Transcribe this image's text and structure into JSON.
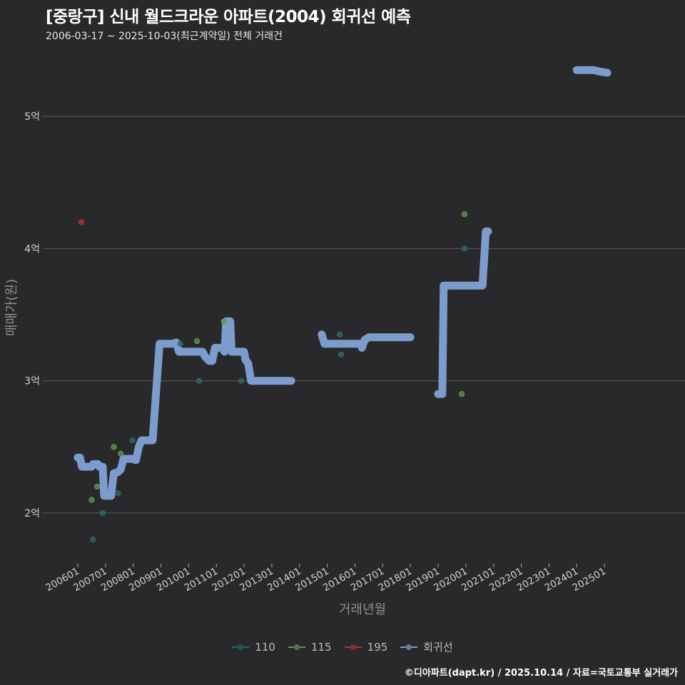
{
  "header": {
    "title": "[중랑구] 신내 월드크라운 아파트(2004) 회귀선 예측",
    "subtitle": "2006-03-17 ~ 2025-10-03(최근계약일) 전체 거래건"
  },
  "footer": {
    "credit": "©디아파트(dapt.kr) / 2025.10.14 / 자료=국토교통부 실거래가"
  },
  "colors": {
    "background": "#29292b",
    "grid": "#5a5a5c",
    "series_110": "#2e6b66",
    "series_115": "#5e9a4e",
    "series_195": "#a8373c",
    "regression": "#7b9ccc"
  },
  "chart_data": {
    "type": "scatter",
    "title": "[중랑구] 신내 월드크라운 아파트(2004) 회귀선 예측",
    "subtitle": "2006-03-17 ~ 2025-10-03(최근계약일) 전체 거래건",
    "xlabel": "거래년월",
    "ylabel": "매매가(원)",
    "x_ticks": [
      "200601",
      "200701",
      "200801",
      "200901",
      "201001",
      "201101",
      "201201",
      "201301",
      "201401",
      "201501",
      "201601",
      "201701",
      "201801",
      "201901",
      "202001",
      "202101",
      "202201",
      "202301",
      "202401",
      "202501"
    ],
    "y_ticks": [
      {
        "value": 2,
        "label": "2억"
      },
      {
        "value": 3,
        "label": "3억"
      },
      {
        "value": 4,
        "label": "4억"
      },
      {
        "value": 5,
        "label": "5억"
      }
    ],
    "ylim": [
      1.7,
      5.8
    ],
    "xlim": [
      2005.5,
      2026.3
    ],
    "grid": true,
    "legend_position": "bottom",
    "legend": [
      {
        "label": "110",
        "key": "series_110"
      },
      {
        "label": "115",
        "key": "series_115"
      },
      {
        "label": "195",
        "key": "series_195"
      },
      {
        "label": "회귀선",
        "key": "regression"
      }
    ],
    "series": [
      {
        "name": "110",
        "type": "scatter",
        "points": [
          [
            2006.55,
            1.8
          ],
          [
            2006.9,
            2.0
          ],
          [
            2007.45,
            2.15
          ],
          [
            2007.97,
            2.55
          ],
          [
            2009.7,
            3.28
          ],
          [
            2010.38,
            3.0
          ],
          [
            2011.9,
            3.0
          ],
          [
            2015.45,
            3.35
          ],
          [
            2015.5,
            3.2
          ],
          [
            2019.95,
            4.0
          ]
        ]
      },
      {
        "name": "115",
        "type": "scatter",
        "points": [
          [
            2006.5,
            2.1
          ],
          [
            2006.7,
            2.2
          ],
          [
            2007.3,
            2.5
          ],
          [
            2007.55,
            2.45
          ],
          [
            2010.3,
            3.3
          ],
          [
            2011.27,
            3.45
          ],
          [
            2019.85,
            2.9
          ],
          [
            2019.95,
            4.26
          ]
        ]
      },
      {
        "name": "195",
        "type": "scatter",
        "points": [
          [
            2006.13,
            4.2
          ]
        ]
      },
      {
        "name": "회귀선",
        "type": "line",
        "segments": [
          [
            [
              2006.0,
              2.42
            ],
            [
              2006.08,
              2.42
            ],
            [
              2006.15,
              2.35
            ],
            [
              2006.5,
              2.35
            ],
            [
              2006.55,
              2.37
            ],
            [
              2006.72,
              2.37
            ],
            [
              2006.78,
              2.35
            ],
            [
              2006.9,
              2.35
            ],
            [
              2006.95,
              2.13
            ],
            [
              2007.2,
              2.13
            ],
            [
              2007.3,
              2.3
            ],
            [
              2007.45,
              2.31
            ],
            [
              2007.55,
              2.33
            ],
            [
              2007.65,
              2.41
            ],
            [
              2007.95,
              2.41
            ],
            [
              2008.1,
              2.4
            ],
            [
              2008.2,
              2.5
            ],
            [
              2008.3,
              2.55
            ],
            [
              2008.7,
              2.55
            ],
            [
              2008.95,
              3.28
            ],
            [
              2009.4,
              3.28
            ],
            [
              2009.55,
              3.29
            ],
            [
              2009.65,
              3.22
            ],
            [
              2010.5,
              3.22
            ],
            [
              2010.6,
              3.18
            ],
            [
              2010.75,
              3.15
            ],
            [
              2010.85,
              3.15
            ],
            [
              2010.95,
              3.25
            ],
            [
              2011.2,
              3.25
            ],
            [
              2011.3,
              3.22
            ],
            [
              2011.35,
              3.45
            ],
            [
              2011.5,
              3.45
            ],
            [
              2011.55,
              3.22
            ],
            [
              2011.7,
              3.22
            ],
            [
              2012.0,
              3.22
            ],
            [
              2012.05,
              3.16
            ],
            [
              2012.15,
              3.13
            ],
            [
              2012.25,
              3.0
            ],
            [
              2013.7,
              3.0
            ]
          ],
          [
            [
              2014.8,
              3.35
            ],
            [
              2014.9,
              3.28
            ],
            [
              2016.2,
              3.28
            ],
            [
              2016.25,
              3.25
            ],
            [
              2016.35,
              3.31
            ],
            [
              2016.5,
              3.33
            ],
            [
              2018.0,
              3.33
            ]
          ],
          [
            [
              2019.0,
              2.9
            ],
            [
              2019.15,
              2.9
            ],
            [
              2019.2,
              3.72
            ],
            [
              2020.6,
              3.72
            ],
            [
              2020.72,
              4.13
            ],
            [
              2020.8,
              4.13
            ]
          ],
          [
            [
              2024.0,
              5.35
            ],
            [
              2024.6,
              5.35
            ],
            [
              2024.8,
              5.34
            ],
            [
              2025.1,
              5.33
            ]
          ]
        ]
      }
    ]
  }
}
